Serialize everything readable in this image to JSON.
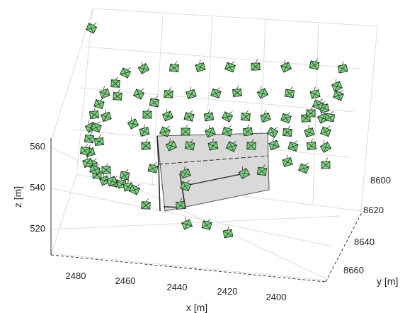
{
  "chart_data": {
    "type": "scatter",
    "title": "",
    "xlabel": "x [m]",
    "ylabel": "y [m]",
    "zlabel": "z [m]",
    "x_ticks": [
      "2480",
      "2460",
      "2440",
      "2420",
      "2400"
    ],
    "y_ticks": [
      "8600",
      "8620",
      "8640",
      "8660"
    ],
    "z_ticks": [
      "560",
      "540",
      "520"
    ],
    "grid": true,
    "structure_color": "#d9d9d9",
    "camera_color": "#77d47a",
    "camera_count": 110
  }
}
